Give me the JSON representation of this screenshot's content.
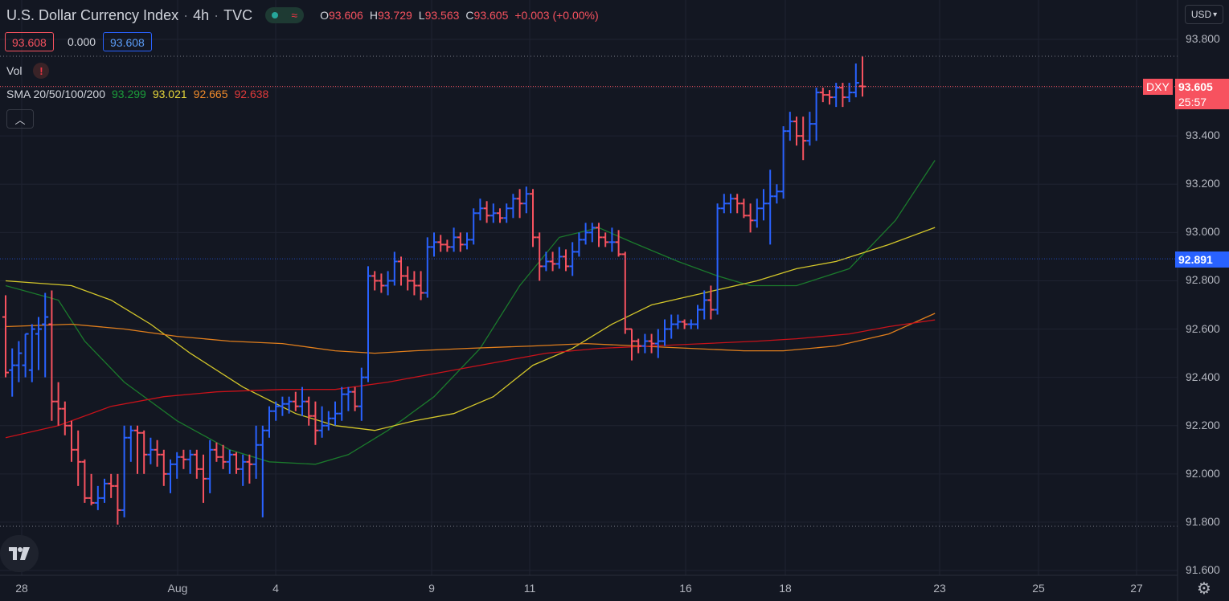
{
  "header": {
    "symbol_title": "U.S. Dollar Currency Index",
    "interval": "4h",
    "exchange": "TVC",
    "ohlc": {
      "o_label": "O",
      "o_value": "93.606",
      "h_label": "H",
      "h_value": "93.729",
      "l_label": "L",
      "l_value": "93.563",
      "c_label": "C",
      "c_value": "93.605",
      "change": "+0.003 (+0.00%)"
    }
  },
  "trade_boxes": {
    "sell": "93.608",
    "spread": "0.000",
    "buy": "93.608"
  },
  "indicators": {
    "vol_label": "Vol",
    "vol_warning": "!",
    "sma_label": "SMA 20/50/100/200",
    "sma_values": [
      "93.299",
      "93.021",
      "92.665",
      "92.638"
    ]
  },
  "currency_selector": "USD",
  "price_tags": {
    "symbol": "DXY",
    "last": "93.605",
    "countdown": "25:57",
    "level": "92.891"
  },
  "icons": [
    "tradingview-logo-icon",
    "settings-gear-icon",
    "chevron-up-icon",
    "chevron-down-icon",
    "market-status-icon",
    "warning-icon"
  ],
  "colors": {
    "background": "#131722",
    "up": "#2962ff",
    "down": "#f7525f",
    "sma20": "#1b7a2c",
    "sma50": "#d4c72a",
    "sma100": "#e07e1c",
    "sma200": "#c8121a",
    "level": "#2962ff"
  },
  "chart_data": {
    "type": "ohlc",
    "title": "U.S. Dollar Currency Index",
    "interval": "4h",
    "y_ticks": [
      "93.800",
      "93.600",
      "93.400",
      "93.200",
      "93.000",
      "92.800",
      "92.600",
      "92.400",
      "92.200",
      "92.000",
      "91.800",
      "91.600"
    ],
    "ylim": [
      91.6,
      93.8
    ],
    "x_tick_labels": [
      "28",
      "Aug",
      "4",
      "9",
      "11",
      "16",
      "18",
      "23",
      "25",
      "27"
    ],
    "bars": [
      [
        92.65,
        92.74,
        92.4,
        92.42
      ],
      [
        92.43,
        92.52,
        92.32,
        92.45
      ],
      [
        92.45,
        92.55,
        92.38,
        92.5
      ],
      [
        92.45,
        92.58,
        92.4,
        92.58
      ],
      [
        92.43,
        92.62,
        92.38,
        92.6
      ],
      [
        92.58,
        92.65,
        92.43,
        92.6
      ],
      [
        92.62,
        92.75,
        92.4,
        92.65
      ],
      [
        92.62,
        92.76,
        92.22,
        92.3
      ],
      [
        92.3,
        92.38,
        92.2,
        92.27
      ],
      [
        92.27,
        92.3,
        92.16,
        92.2
      ],
      [
        92.2,
        92.22,
        92.05,
        92.1
      ],
      [
        92.1,
        92.18,
        91.95,
        92.05
      ],
      [
        92.05,
        92.06,
        91.88,
        91.9
      ],
      [
        91.9,
        92.0,
        91.87,
        91.88
      ],
      [
        91.88,
        91.95,
        91.85,
        91.9
      ],
      [
        91.9,
        91.98,
        91.88,
        91.96
      ],
      [
        91.96,
        92.0,
        91.9,
        91.95
      ],
      [
        91.95,
        92.0,
        91.79,
        91.85
      ],
      [
        91.85,
        92.2,
        91.82,
        92.15
      ],
      [
        92.15,
        92.2,
        92.05,
        92.18
      ],
      [
        92.18,
        92.2,
        92.0,
        92.17
      ],
      [
        92.17,
        92.18,
        92.0,
        92.08
      ],
      [
        92.08,
        92.15,
        92.04,
        92.1
      ],
      [
        92.1,
        92.14,
        92.03,
        92.08
      ],
      [
        92.08,
        92.1,
        91.95,
        92.0
      ],
      [
        92.0,
        92.06,
        91.92,
        92.04
      ],
      [
        92.04,
        92.09,
        91.98,
        92.07
      ],
      [
        92.07,
        92.1,
        92.02,
        92.06
      ],
      [
        92.06,
        92.1,
        92.0,
        92.08
      ],
      [
        92.08,
        92.1,
        91.98,
        92.02
      ],
      [
        92.02,
        92.08,
        91.88,
        91.98
      ],
      [
        91.98,
        92.14,
        91.92,
        92.1
      ],
      [
        92.1,
        92.13,
        92.05,
        92.07
      ],
      [
        92.07,
        92.12,
        92.02,
        92.05
      ],
      [
        92.05,
        92.1,
        92.0,
        92.08
      ],
      [
        92.08,
        92.09,
        92.0,
        92.02
      ],
      [
        92.02,
        92.08,
        91.95,
        92.05
      ],
      [
        92.05,
        92.08,
        91.96,
        92.04
      ],
      [
        92.04,
        92.2,
        91.98,
        92.12
      ],
      [
        92.12,
        92.2,
        91.82,
        92.18
      ],
      [
        92.18,
        92.28,
        92.15,
        92.26
      ],
      [
        92.26,
        92.3,
        92.22,
        92.28
      ],
      [
        92.28,
        92.32,
        92.24,
        92.29
      ],
      [
        92.29,
        92.32,
        92.25,
        92.3
      ],
      [
        92.3,
        92.34,
        92.26,
        92.28
      ],
      [
        92.28,
        92.36,
        92.24,
        92.3
      ],
      [
        92.3,
        92.32,
        92.2,
        92.24
      ],
      [
        92.24,
        92.3,
        92.12,
        92.18
      ],
      [
        92.18,
        92.28,
        92.15,
        92.2
      ],
      [
        92.2,
        92.26,
        92.18,
        92.23
      ],
      [
        92.23,
        92.3,
        92.2,
        92.25
      ],
      [
        92.25,
        92.36,
        92.22,
        92.33
      ],
      [
        92.33,
        92.36,
        92.26,
        92.34
      ],
      [
        92.34,
        92.36,
        92.26,
        92.28
      ],
      [
        92.28,
        92.44,
        92.22,
        92.4
      ],
      [
        92.4,
        92.86,
        92.38,
        92.82
      ],
      [
        92.82,
        92.84,
        92.76,
        92.8
      ],
      [
        92.8,
        92.83,
        92.75,
        92.78
      ],
      [
        92.78,
        92.84,
        92.74,
        92.8
      ],
      [
        92.8,
        92.92,
        92.78,
        92.88
      ],
      [
        92.88,
        92.9,
        92.78,
        92.82
      ],
      [
        92.82,
        92.86,
        92.76,
        92.8
      ],
      [
        92.8,
        92.84,
        92.74,
        92.78
      ],
      [
        92.78,
        92.84,
        92.72,
        92.75
      ],
      [
        92.75,
        92.98,
        92.73,
        92.94
      ],
      [
        92.94,
        93.0,
        92.9,
        92.96
      ],
      [
        92.96,
        92.99,
        92.92,
        92.95
      ],
      [
        92.95,
        92.97,
        92.92,
        92.94
      ],
      [
        92.94,
        93.02,
        92.92,
        92.98
      ],
      [
        92.98,
        93.0,
        92.92,
        92.95
      ],
      [
        92.95,
        93.0,
        92.93,
        92.97
      ],
      [
        92.97,
        93.1,
        92.95,
        93.08
      ],
      [
        93.08,
        93.14,
        93.05,
        93.1
      ],
      [
        93.1,
        93.13,
        93.04,
        93.07
      ],
      [
        93.07,
        93.12,
        93.04,
        93.08
      ],
      [
        93.08,
        93.1,
        93.04,
        93.06
      ],
      [
        93.06,
        93.12,
        93.04,
        93.1
      ],
      [
        93.1,
        93.16,
        93.06,
        93.14
      ],
      [
        93.14,
        93.18,
        93.06,
        93.12
      ],
      [
        93.12,
        93.19,
        93.08,
        93.16
      ],
      [
        93.16,
        93.18,
        92.94,
        92.98
      ],
      [
        92.98,
        93.0,
        92.8,
        92.86
      ],
      [
        92.86,
        92.92,
        92.84,
        92.88
      ],
      [
        92.88,
        92.92,
        92.84,
        92.87
      ],
      [
        92.87,
        92.94,
        92.85,
        92.9
      ],
      [
        92.9,
        92.93,
        92.84,
        92.86
      ],
      [
        92.86,
        92.96,
        92.82,
        92.92
      ],
      [
        92.92,
        93.0,
        92.9,
        92.97
      ],
      [
        92.97,
        93.04,
        92.95,
        93.0
      ],
      [
        93.0,
        93.04,
        92.96,
        93.02
      ],
      [
        93.02,
        93.04,
        92.94,
        92.98
      ],
      [
        92.98,
        93.0,
        92.94,
        92.96
      ],
      [
        92.96,
        93.02,
        92.92,
        92.96
      ],
      [
        92.96,
        93.01,
        92.9,
        92.91
      ],
      [
        92.91,
        92.92,
        92.58,
        92.6
      ],
      [
        92.6,
        92.6,
        92.47,
        92.55
      ],
      [
        92.55,
        92.56,
        92.5,
        92.53
      ],
      [
        92.53,
        92.58,
        92.5,
        92.55
      ],
      [
        92.55,
        92.58,
        92.5,
        92.54
      ],
      [
        92.54,
        92.6,
        92.48,
        92.55
      ],
      [
        92.55,
        92.64,
        92.53,
        92.6
      ],
      [
        92.6,
        92.66,
        92.56,
        92.62
      ],
      [
        92.62,
        92.66,
        92.6,
        92.63
      ],
      [
        92.63,
        92.64,
        92.6,
        92.62
      ],
      [
        92.62,
        92.64,
        92.6,
        92.62
      ],
      [
        92.62,
        92.7,
        92.6,
        92.68
      ],
      [
        92.68,
        92.76,
        92.64,
        92.72
      ],
      [
        92.72,
        92.78,
        92.64,
        92.68
      ],
      [
        92.68,
        93.12,
        92.66,
        93.1
      ],
      [
        93.1,
        93.16,
        93.08,
        93.12
      ],
      [
        93.12,
        93.16,
        93.08,
        93.14
      ],
      [
        93.14,
        93.16,
        93.08,
        93.12
      ],
      [
        93.12,
        93.14,
        93.06,
        93.07
      ],
      [
        93.07,
        93.12,
        93.0,
        93.05
      ],
      [
        93.05,
        93.14,
        93.02,
        93.1
      ],
      [
        93.1,
        93.18,
        93.05,
        93.12
      ],
      [
        93.12,
        93.26,
        92.95,
        93.15
      ],
      [
        93.15,
        93.2,
        93.12,
        93.17
      ],
      [
        93.17,
        93.44,
        93.14,
        93.42
      ],
      [
        93.42,
        93.5,
        93.38,
        93.46
      ],
      [
        93.46,
        93.48,
        93.36,
        93.4
      ],
      [
        93.4,
        93.48,
        93.3,
        93.38
      ],
      [
        93.38,
        93.5,
        93.36,
        93.45
      ],
      [
        93.45,
        93.6,
        93.38,
        93.58
      ],
      [
        93.58,
        93.6,
        93.54,
        93.57
      ],
      [
        93.57,
        93.59,
        93.53,
        93.56
      ],
      [
        93.56,
        93.62,
        93.52,
        93.6
      ],
      [
        93.6,
        93.62,
        93.52,
        93.56
      ],
      [
        93.56,
        93.62,
        93.54,
        93.58
      ],
      [
        93.58,
        93.7,
        93.56,
        93.62
      ],
      [
        93.606,
        93.729,
        93.563,
        93.605
      ]
    ],
    "sma": [
      {
        "name": "SMA 20",
        "color": "#1b7a2c",
        "points": [
          [
            0,
            92.78
          ],
          [
            8,
            92.72
          ],
          [
            12,
            92.55
          ],
          [
            18,
            92.38
          ],
          [
            26,
            92.22
          ],
          [
            34,
            92.1
          ],
          [
            40,
            92.05
          ],
          [
            47,
            92.04
          ],
          [
            52,
            92.08
          ],
          [
            58,
            92.18
          ],
          [
            65,
            92.32
          ],
          [
            72,
            92.52
          ],
          [
            78,
            92.78
          ],
          [
            84,
            92.98
          ],
          [
            90,
            93.02
          ],
          [
            95,
            92.96
          ],
          [
            102,
            92.88
          ],
          [
            108,
            92.82
          ],
          [
            113,
            92.78
          ],
          [
            120,
            92.78
          ],
          [
            128,
            92.85
          ],
          [
            135,
            93.05
          ],
          [
            141,
            93.299
          ]
        ]
      },
      {
        "name": "SMA 50",
        "color": "#d4c72a",
        "points": [
          [
            0,
            92.8
          ],
          [
            10,
            92.78
          ],
          [
            16,
            92.72
          ],
          [
            22,
            92.62
          ],
          [
            28,
            92.5
          ],
          [
            36,
            92.36
          ],
          [
            44,
            92.25
          ],
          [
            50,
            92.2
          ],
          [
            56,
            92.18
          ],
          [
            62,
            92.22
          ],
          [
            68,
            92.25
          ],
          [
            74,
            92.32
          ],
          [
            80,
            92.45
          ],
          [
            86,
            92.52
          ],
          [
            92,
            92.62
          ],
          [
            98,
            92.7
          ],
          [
            106,
            92.75
          ],
          [
            114,
            92.8
          ],
          [
            120,
            92.85
          ],
          [
            126,
            92.88
          ],
          [
            134,
            92.95
          ],
          [
            141,
            93.021
          ]
        ]
      },
      {
        "name": "SMA 100",
        "color": "#e07e1c",
        "points": [
          [
            0,
            92.61
          ],
          [
            10,
            92.62
          ],
          [
            18,
            92.6
          ],
          [
            26,
            92.57
          ],
          [
            34,
            92.55
          ],
          [
            42,
            92.54
          ],
          [
            50,
            92.51
          ],
          [
            56,
            92.5
          ],
          [
            62,
            92.51
          ],
          [
            70,
            92.52
          ],
          [
            80,
            92.53
          ],
          [
            88,
            92.54
          ],
          [
            96,
            92.53
          ],
          [
            104,
            92.52
          ],
          [
            112,
            92.51
          ],
          [
            118,
            92.51
          ],
          [
            126,
            92.53
          ],
          [
            134,
            92.58
          ],
          [
            141,
            92.665
          ]
        ]
      },
      {
        "name": "SMA 200",
        "color": "#c8121a",
        "points": [
          [
            0,
            92.15
          ],
          [
            8,
            92.2
          ],
          [
            16,
            92.28
          ],
          [
            24,
            92.32
          ],
          [
            32,
            92.34
          ],
          [
            42,
            92.35
          ],
          [
            50,
            92.35
          ],
          [
            58,
            92.38
          ],
          [
            66,
            92.42
          ],
          [
            74,
            92.46
          ],
          [
            82,
            92.5
          ],
          [
            90,
            92.52
          ],
          [
            98,
            92.53
          ],
          [
            106,
            92.54
          ],
          [
            114,
            92.55
          ],
          [
            120,
            92.56
          ],
          [
            128,
            92.58
          ],
          [
            134,
            92.61
          ],
          [
            141,
            92.638
          ]
        ]
      }
    ],
    "reference_line": 92.891,
    "last_price": 93.605,
    "grid": true,
    "legend": "top-left"
  }
}
